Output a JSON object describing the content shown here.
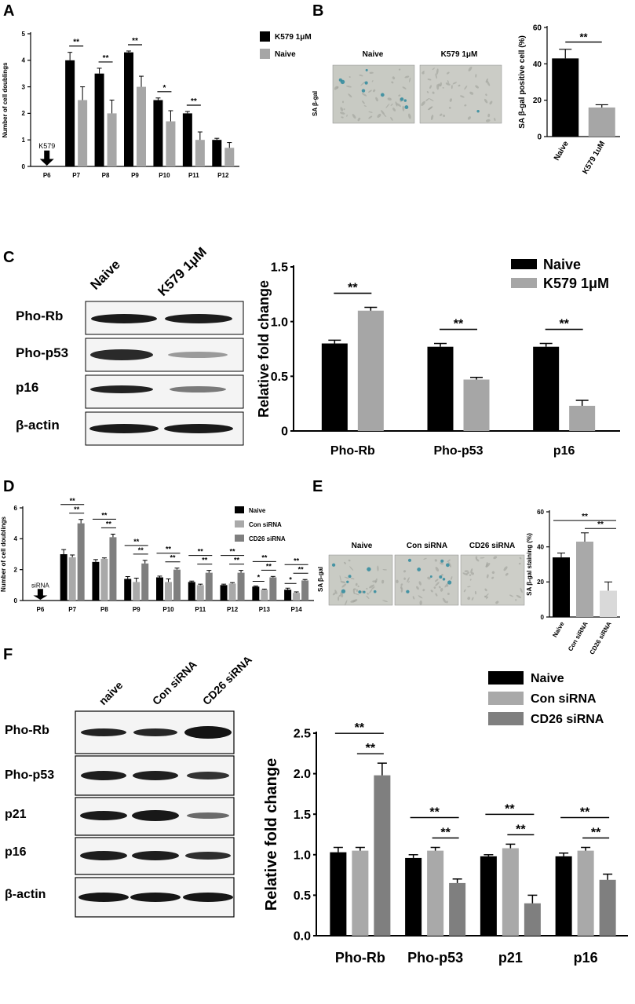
{
  "panels": {
    "A": "A",
    "B": "B",
    "C": "C",
    "D": "D",
    "E": "E",
    "F": "F"
  },
  "colors": {
    "black": "#000000",
    "light_gray": "#a6a6a6",
    "mid_gray": "#a9a9a9",
    "dark_gray": "#7f7f7f",
    "pale_gray": "#d9d9d9",
    "stain_bg": "#c9cbc4",
    "stain_blue": "#2e8a9e"
  },
  "panel_B": {
    "image_labels": [
      "Naive",
      "K579 1μM"
    ],
    "stain_label": "SA β-gal"
  },
  "panel_C": {
    "lane_labels": [
      "Naive",
      "K579 1μM"
    ],
    "row_labels": [
      "Pho-Rb",
      "Pho-p53",
      "p16",
      "β-actin"
    ]
  },
  "panel_E": {
    "image_labels": [
      "Naive",
      "Con siRNA",
      "CD26 siRNA"
    ],
    "stain_label": "SA β-gal"
  },
  "panel_F": {
    "lane_labels": [
      "naive",
      "Con siRNA",
      "CD26 siRNA"
    ],
    "row_labels": [
      "Pho-Rb",
      "Pho-p53",
      "p21",
      "p16",
      "β-actin"
    ]
  },
  "chart_data": [
    {
      "id": "A",
      "type": "bar",
      "categories": [
        "P6",
        "P7",
        "P8",
        "P9",
        "P10",
        "P11",
        "P12"
      ],
      "series": [
        {
          "name": "K579 1μM",
          "color": "#000000",
          "values": [
            null,
            4.0,
            3.5,
            4.3,
            2.5,
            2.0,
            1.0
          ],
          "errors": [
            0,
            0.3,
            0.2,
            0.05,
            0.08,
            0.07,
            0.06
          ]
        },
        {
          "name": "Naive",
          "color": "#a6a6a6",
          "values": [
            null,
            2.5,
            2.0,
            3.0,
            1.7,
            1.0,
            0.7
          ],
          "errors": [
            0,
            0.5,
            0.5,
            0.4,
            0.4,
            0.3,
            0.2
          ]
        }
      ],
      "ylabel": "Number of cell doublings",
      "ylim": [
        0,
        5
      ],
      "yticks": [
        0,
        1,
        2,
        3,
        4,
        5
      ],
      "annotation": "K579",
      "significance": [
        {
          "cat": 1,
          "label": "**"
        },
        {
          "cat": 2,
          "label": "**"
        },
        {
          "cat": 3,
          "label": "**"
        },
        {
          "cat": 4,
          "label": "*"
        },
        {
          "cat": 5,
          "label": "**"
        }
      ]
    },
    {
      "id": "B",
      "type": "bar",
      "categories": [
        "Naive",
        "K579 1uM"
      ],
      "values": [
        43,
        16
      ],
      "errors": [
        5,
        1.5
      ],
      "colors": [
        "#000000",
        "#a6a6a6"
      ],
      "ylabel": "SA β-gal positive cell (%)",
      "ylim": [
        0,
        60
      ],
      "yticks": [
        0,
        20,
        40,
        60
      ],
      "significance": [
        {
          "label": "**"
        }
      ]
    },
    {
      "id": "C",
      "type": "bar",
      "categories": [
        "Pho-Rb",
        "Pho-p53",
        "p16"
      ],
      "series": [
        {
          "name": "Naive",
          "color": "#000000",
          "values": [
            0.8,
            0.77,
            0.77
          ],
          "errors": [
            0.03,
            0.03,
            0.03
          ]
        },
        {
          "name": "K579 1μM",
          "color": "#a6a6a6",
          "values": [
            1.1,
            0.47,
            0.23
          ],
          "errors": [
            0.03,
            0.02,
            0.05
          ]
        }
      ],
      "ylabel": "Relative fold change",
      "ylim": [
        0,
        1.5
      ],
      "yticks": [
        "0",
        "0.5",
        "1.0",
        "1.5"
      ],
      "legend": "top-right",
      "significance": [
        {
          "cat": 0,
          "label": "**"
        },
        {
          "cat": 1,
          "label": "**"
        },
        {
          "cat": 2,
          "label": "**"
        }
      ]
    },
    {
      "id": "D",
      "type": "bar",
      "categories": [
        "P6",
        "P7",
        "P8",
        "P9",
        "P10",
        "P11",
        "P12",
        "P13",
        "P14"
      ],
      "series": [
        {
          "name": "Naive",
          "color": "#000000",
          "values": [
            null,
            3.0,
            2.5,
            1.4,
            1.5,
            1.2,
            1.0,
            0.9,
            0.7
          ],
          "errors": [
            0,
            0.3,
            0.15,
            0.15,
            0.08,
            0.06,
            0.06,
            0.04,
            0.1
          ]
        },
        {
          "name": "Con siRNA",
          "color": "#a9a9a9",
          "values": [
            null,
            2.8,
            2.7,
            1.2,
            1.2,
            1.0,
            1.1,
            0.7,
            0.5
          ],
          "errors": [
            0,
            0.15,
            0.06,
            0.25,
            0.2,
            0.06,
            0.06,
            0.04,
            0.06
          ]
        },
        {
          "name": "CD26 siRNA",
          "color": "#7f7f7f",
          "values": [
            null,
            5.0,
            4.1,
            2.4,
            2.0,
            1.8,
            1.8,
            1.5,
            1.3
          ],
          "errors": [
            0,
            0.25,
            0.2,
            0.2,
            0.1,
            0.15,
            0.15,
            0.06,
            0.06
          ]
        }
      ],
      "ylabel": "Number of cell doublings",
      "ylim": [
        0,
        6
      ],
      "yticks": [
        0,
        2,
        4,
        6
      ],
      "legend": "top-right",
      "annotation": "siRNA",
      "significance": [
        {
          "cat": 1,
          "upper": "**",
          "lower": "**"
        },
        {
          "cat": 2,
          "upper": "**",
          "lower": "**"
        },
        {
          "cat": 3,
          "upper": "**",
          "lower": "**"
        },
        {
          "cat": 4,
          "upper": "**",
          "lower": "**"
        },
        {
          "cat": 5,
          "upper": "**",
          "lower": "**"
        },
        {
          "cat": 6,
          "upper": "**",
          "lower": "**"
        },
        {
          "cat": 7,
          "upper": "**",
          "lower": "**",
          "inner": "*"
        },
        {
          "cat": 8,
          "upper": "**",
          "lower": "**",
          "inner": "*"
        }
      ]
    },
    {
      "id": "E",
      "type": "bar",
      "categories": [
        "Naive",
        "Con siRNA",
        "CD26 siRNA"
      ],
      "values": [
        34,
        43,
        15
      ],
      "errors": [
        2.5,
        5,
        5
      ],
      "colors": [
        "#000000",
        "#a9a9a9",
        "#d9d9d9"
      ],
      "ylabel": "SA β-gal staining (%)",
      "ylim": [
        0,
        60
      ],
      "yticks": [
        0,
        20,
        40,
        60
      ],
      "significance": [
        {
          "label": "**"
        },
        {
          "label": "**"
        }
      ]
    },
    {
      "id": "F",
      "type": "bar",
      "categories": [
        "Pho-Rb",
        "Pho-p53",
        "p21",
        "p16"
      ],
      "series": [
        {
          "name": "Naive",
          "color": "#000000",
          "values": [
            1.03,
            0.96,
            0.98,
            0.98
          ],
          "errors": [
            0.06,
            0.04,
            0.02,
            0.04
          ]
        },
        {
          "name": "Con siRNA",
          "color": "#a9a9a9",
          "values": [
            1.05,
            1.05,
            1.08,
            1.05
          ],
          "errors": [
            0.04,
            0.04,
            0.05,
            0.04
          ]
        },
        {
          "name": "CD26 siRNA",
          "color": "#7f7f7f",
          "values": [
            1.98,
            0.65,
            0.4,
            0.69
          ],
          "errors": [
            0.15,
            0.05,
            0.1,
            0.07
          ]
        }
      ],
      "ylabel": "Relative fold change",
      "ylim": [
        0,
        2.5
      ],
      "yticks": [
        "0.0",
        "0.5",
        "1.0",
        "1.5",
        "2.0",
        "2.5"
      ],
      "legend": "top-right",
      "significance": [
        {
          "cat": 0,
          "upper": "**",
          "lower": "**"
        },
        {
          "cat": 1,
          "upper": "**",
          "lower": "**"
        },
        {
          "cat": 2,
          "upper": "**",
          "lower": "**"
        },
        {
          "cat": 3,
          "upper": "**",
          "lower": "**"
        }
      ]
    }
  ]
}
